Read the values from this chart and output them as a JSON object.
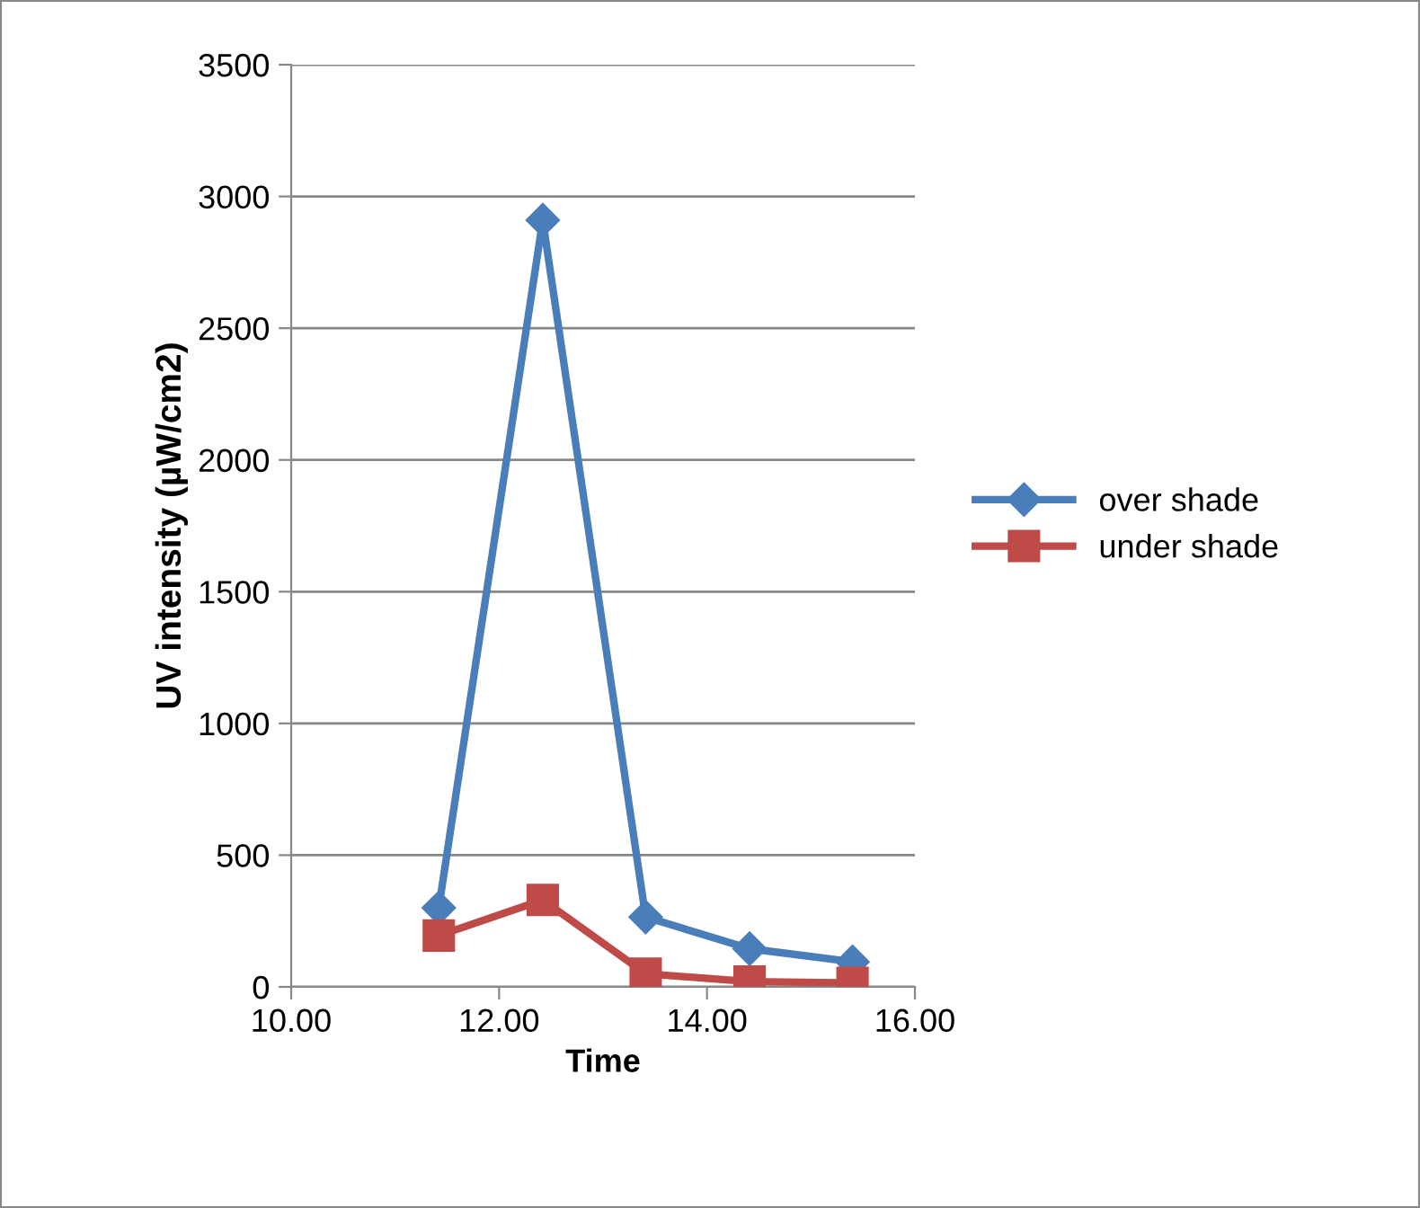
{
  "chart_data": {
    "type": "line",
    "xlabel": "Time",
    "ylabel": "UV intensity (µW/cm2)",
    "x": [
      11.42,
      12.42,
      13.41,
      14.41,
      15.4
    ],
    "series": [
      {
        "name": "over shade",
        "color": "#4a7ebb",
        "marker": "diamond",
        "values": [
          300,
          2910,
          265,
          145,
          95
        ]
      },
      {
        "name": "under shade",
        "color": "#be4b48",
        "marker": "square",
        "values": [
          195,
          330,
          50,
          20,
          15
        ]
      }
    ],
    "xlim": [
      10,
      16
    ],
    "xticks": [
      {
        "value": 10,
        "label": "10.00"
      },
      {
        "value": 12,
        "label": "12.00"
      },
      {
        "value": 14,
        "label": "14.00"
      },
      {
        "value": 16,
        "label": "16.00"
      }
    ],
    "ylim": [
      0,
      3500
    ],
    "yticks": [
      0,
      500,
      1000,
      1500,
      2000,
      2500,
      3000,
      3500
    ],
    "grid": "y",
    "legend": "right",
    "line_style": "solid"
  }
}
